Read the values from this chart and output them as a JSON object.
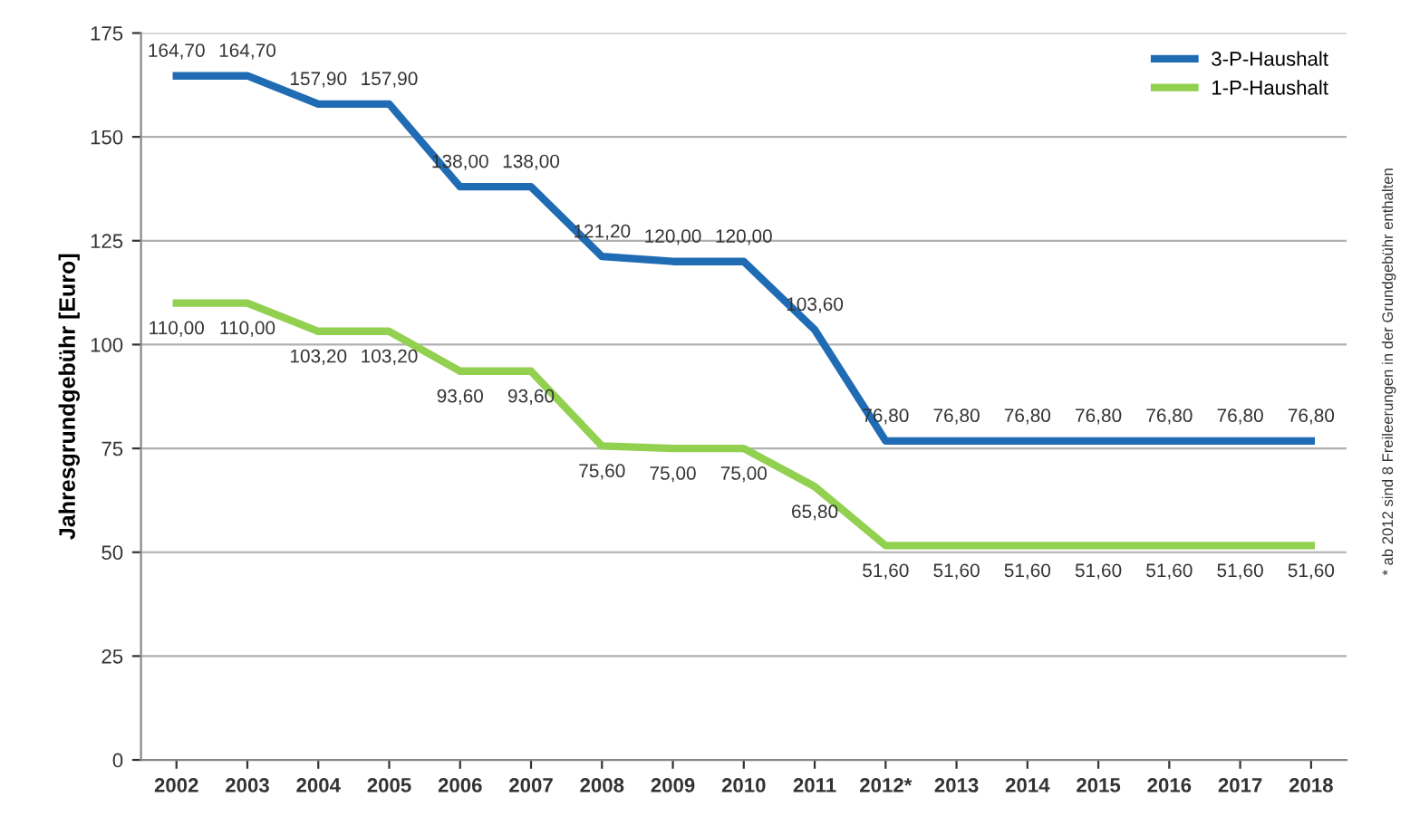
{
  "chart_data": {
    "type": "line",
    "ylabel": "Jahresgrundgebühr [Euro]",
    "categories": [
      "2002",
      "2003",
      "2004",
      "2005",
      "2006",
      "2007",
      "2008",
      "2009",
      "2010",
      "2011",
      "2012*",
      "2013",
      "2014",
      "2015",
      "2016",
      "2017",
      "2018"
    ],
    "series": [
      {
        "name": "3-P-Haushalt",
        "color": "#1f6cb5",
        "values": [
          164.7,
          164.7,
          157.9,
          157.9,
          138,
          138,
          121.2,
          120,
          120,
          103.6,
          76.8,
          76.8,
          76.8,
          76.8,
          76.8,
          76.8,
          76.8
        ],
        "value_labels": [
          "164,70",
          "164,70",
          "157,90",
          "157,90",
          "138,00",
          "138,00",
          "121,20",
          "120,00",
          "120,00",
          "103,60",
          "76,80",
          "76,80",
          "76,80",
          "76,80",
          "76,80",
          "76,80",
          "76,80"
        ]
      },
      {
        "name": "1-P-Haushalt",
        "color": "#92d050",
        "values": [
          110,
          110,
          103.2,
          103.2,
          93.6,
          93.6,
          75.6,
          75,
          75,
          65.8,
          51.6,
          51.6,
          51.6,
          51.6,
          51.6,
          51.6,
          51.6
        ],
        "value_labels": [
          "110,00",
          "110,00",
          "103,20",
          "103,20",
          "93,60",
          "93,60",
          "75,60",
          "75,00",
          "75,00",
          "65,80",
          "51,60",
          "51,60",
          "51,60",
          "51,60",
          "51,60",
          "51,60",
          "51,60"
        ]
      }
    ],
    "ylim": [
      0,
      175
    ],
    "yticks": [
      0,
      25,
      50,
      75,
      100,
      125,
      150,
      175
    ],
    "grid": "y",
    "legend": "top right",
    "marker": "none",
    "line_style": "solid",
    "annotations": [
      "* ab 2012 sind 8 Freileerungen in der Grundgebühr enthalten"
    ]
  }
}
